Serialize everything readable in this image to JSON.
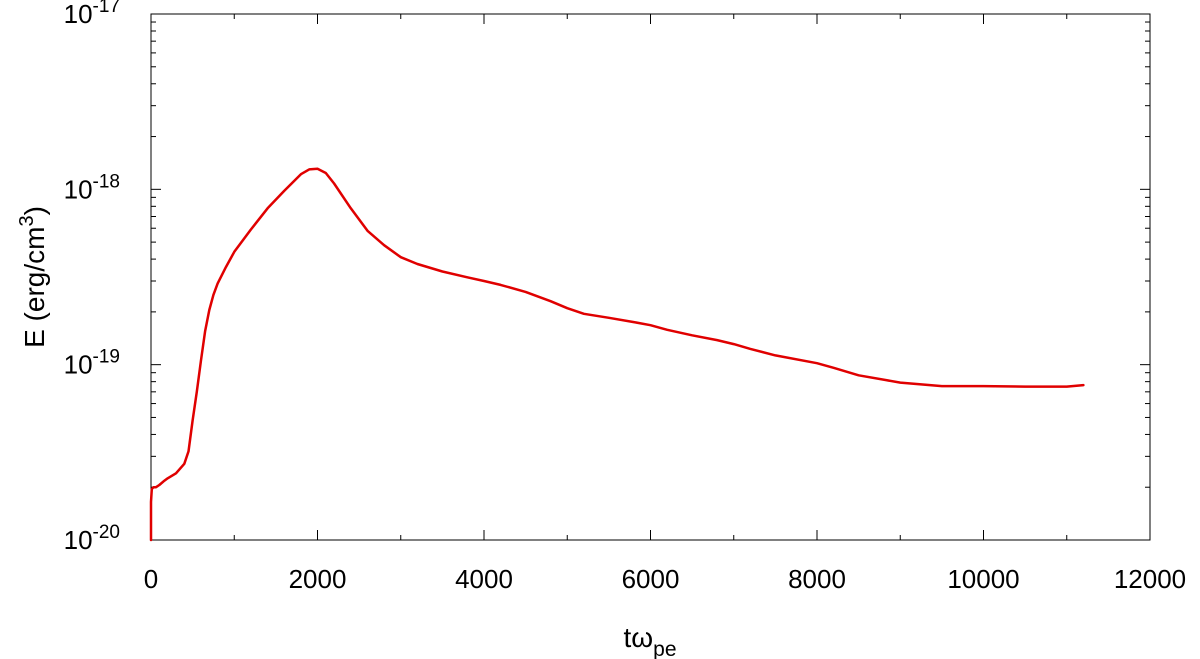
{
  "chart_data": {
    "type": "line",
    "title": "",
    "xlabel": {
      "base": "tω",
      "subscript": "pe"
    },
    "ylabel": {
      "prefix": "E (erg/cm",
      "superscript": "3",
      "suffix": ")"
    },
    "xlim": [
      0,
      12000
    ],
    "ylim": [
      1e-20,
      1e-17
    ],
    "yscale": "log",
    "grid": false,
    "x_ticks": [
      0,
      2000,
      4000,
      6000,
      8000,
      10000,
      12000
    ],
    "x_tick_labels": [
      "0",
      "2000",
      "4000",
      "6000",
      "8000",
      "10000",
      "12000"
    ],
    "y_ticks": [
      {
        "value": 1e-20,
        "base": "10",
        "exp": "-20"
      },
      {
        "value": 1e-19,
        "base": "10",
        "exp": "-19"
      },
      {
        "value": 1e-18,
        "base": "10",
        "exp": "-18"
      },
      {
        "value": 1e-17,
        "base": "10",
        "exp": "-17"
      }
    ],
    "series": [
      {
        "color": "#e00000",
        "x": [
          0,
          0,
          10,
          30,
          60,
          100,
          150,
          200,
          300,
          400,
          450,
          500,
          550,
          600,
          650,
          700,
          750,
          800,
          900,
          1000,
          1200,
          1400,
          1600,
          1800,
          1900,
          2000,
          2100,
          2200,
          2400,
          2600,
          2800,
          3000,
          3200,
          3500,
          3800,
          4000,
          4200,
          4500,
          4800,
          5000,
          5200,
          5500,
          5800,
          6000,
          6200,
          6500,
          6800,
          7000,
          7200,
          7500,
          8000,
          8200,
          8500,
          9000,
          9500,
          10000,
          10500,
          11000,
          11200
        ],
        "y": [
          1e-20,
          1.65e-20,
          1.95e-20,
          2e-20,
          2e-20,
          2.06e-20,
          2.16e-20,
          2.25e-20,
          2.4e-20,
          2.72e-20,
          3.2e-20,
          4.8e-20,
          7e-20,
          1.05e-19,
          1.55e-19,
          2.05e-19,
          2.5e-19,
          2.9e-19,
          3.6e-19,
          4.4e-19,
          5.9e-19,
          7.8e-19,
          9.8e-19,
          1.22e-18,
          1.3e-18,
          1.31e-18,
          1.24e-18,
          1.08e-18,
          7.8e-19,
          5.8e-19,
          4.8e-19,
          4.1e-19,
          3.75e-19,
          3.4e-19,
          3.15e-19,
          3e-19,
          2.85e-19,
          2.6e-19,
          2.3e-19,
          2.1e-19,
          1.95e-19,
          1.85e-19,
          1.75e-19,
          1.68e-19,
          1.58e-19,
          1.47e-19,
          1.38e-19,
          1.31e-19,
          1.23e-19,
          1.13e-19,
          1.02e-19,
          9.6e-20,
          8.7e-20,
          7.9e-20,
          7.55e-20,
          7.55e-20,
          7.5e-20,
          7.5e-20,
          7.65e-20
        ]
      }
    ]
  }
}
